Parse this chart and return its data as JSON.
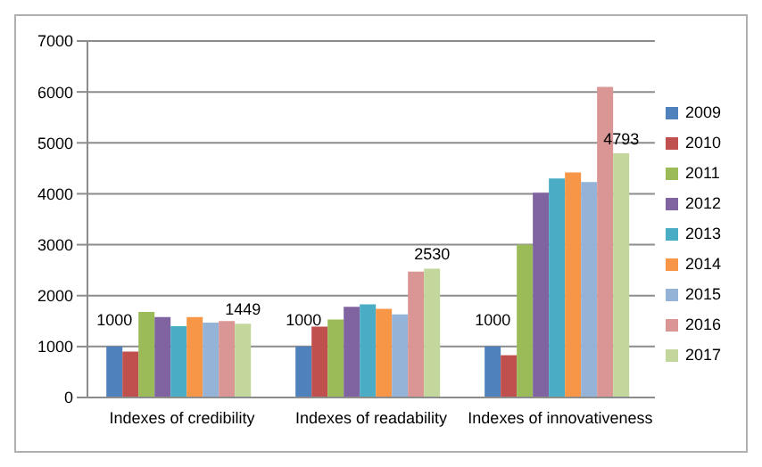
{
  "chart_data": {
    "type": "bar",
    "categories": [
      "Indexes of credibility",
      "Indexes of readability",
      "Indexes of innovativeness"
    ],
    "series": [
      {
        "name": "2009",
        "color": "#4f81bd",
        "values": [
          1000,
          1000,
          1000
        ],
        "value_labels": [
          "1000",
          "1000",
          "1000"
        ]
      },
      {
        "name": "2010",
        "color": "#c0504d",
        "values": [
          900,
          1390,
          830
        ]
      },
      {
        "name": "2011",
        "color": "#9bbb59",
        "values": [
          1680,
          1530,
          3000
        ]
      },
      {
        "name": "2012",
        "color": "#8064a2",
        "values": [
          1580,
          1780,
          4020
        ]
      },
      {
        "name": "2013",
        "color": "#4bacc6",
        "values": [
          1400,
          1830,
          4300
        ]
      },
      {
        "name": "2014",
        "color": "#f79646",
        "values": [
          1580,
          1740,
          4420
        ]
      },
      {
        "name": "2015",
        "color": "#95b3d7",
        "values": [
          1470,
          1630,
          4230
        ]
      },
      {
        "name": "2016",
        "color": "#d99694",
        "values": [
          1500,
          2470,
          6100
        ]
      },
      {
        "name": "2017",
        "color": "#c3d69b",
        "values": [
          1449,
          2530,
          4793
        ],
        "value_labels": [
          "1449",
          "2530",
          "4793"
        ]
      }
    ],
    "ylim": [
      0,
      7000
    ],
    "yticks": [
      0,
      1000,
      2000,
      3000,
      4000,
      5000,
      6000,
      7000
    ],
    "grid": "y",
    "legend": "right"
  }
}
